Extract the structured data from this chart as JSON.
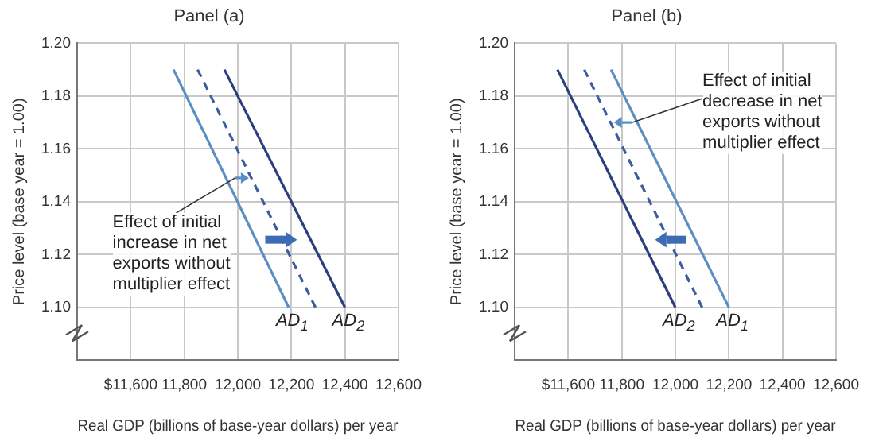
{
  "chart_data": [
    {
      "type": "line",
      "title": "Panel (a)",
      "xlabel": "Real GDP (billions of base-year dollars) per year",
      "ylabel": "Price level (base year = 1.00)",
      "xlim": [
        11400,
        12600
      ],
      "ylim": [
        1.08,
        1.2
      ],
      "xticks": [
        {
          "value": 11600,
          "label": "$11,600"
        },
        {
          "value": 11800,
          "label": "11,800"
        },
        {
          "value": 12000,
          "label": "12,000"
        },
        {
          "value": 12200,
          "label": "12,200"
        },
        {
          "value": 12400,
          "label": "12,400"
        },
        {
          "value": 12600,
          "label": "12,600"
        }
      ],
      "yticks": [
        {
          "value": 1.1,
          "label": "1.10"
        },
        {
          "value": 1.12,
          "label": "1.12"
        },
        {
          "value": 1.14,
          "label": "1.14"
        },
        {
          "value": 1.16,
          "label": "1.16"
        },
        {
          "value": 1.18,
          "label": "1.18"
        },
        {
          "value": 1.2,
          "label": "1.20"
        }
      ],
      "grid": true,
      "marker": "none",
      "series": [
        {
          "name": "AD$_{1}$",
          "color": "#5b8ec4",
          "x": [
            11760,
            12190
          ],
          "values": [
            1.19,
            1.1
          ]
        },
        {
          "color": "#3b5c9e",
          "x": [
            11850,
            12290
          ],
          "values": [
            1.19,
            1.1
          ],
          "line_style": "dashed"
        },
        {
          "name": "AD$_{2}$",
          "color": "#2b3f7f",
          "x": [
            11950,
            12400
          ],
          "values": [
            1.19,
            1.1
          ]
        }
      ],
      "annotations": [
        {
          "text": "Effect of initial\nincrease in net\nexports without\nmultiplier effect",
          "x": 11990,
          "y": 1.149
        }
      ]
    },
    {
      "type": "line",
      "title": "Panel (b)",
      "xlabel": "Real GDP (billions of base-year dollars) per year",
      "ylabel": "Price level (base year = 1.00)",
      "xlim": [
        11400,
        12600
      ],
      "ylim": [
        1.08,
        1.2
      ],
      "xticks": [
        {
          "value": 11600,
          "label": "$11,600"
        },
        {
          "value": 11800,
          "label": "11,800"
        },
        {
          "value": 12000,
          "label": "12,000"
        },
        {
          "value": 12200,
          "label": "12,200"
        },
        {
          "value": 12400,
          "label": "12,400"
        },
        {
          "value": 12600,
          "label": "12,600"
        }
      ],
      "yticks": [
        {
          "value": 1.1,
          "label": "1.10"
        },
        {
          "value": 1.12,
          "label": "1.12"
        },
        {
          "value": 1.14,
          "label": "1.14"
        },
        {
          "value": 1.16,
          "label": "1.16"
        },
        {
          "value": 1.18,
          "label": "1.18"
        },
        {
          "value": 1.2,
          "label": "1.20"
        }
      ],
      "grid": true,
      "marker": "none",
      "series": [
        {
          "name": "AD$_{1}$",
          "color": "#5b8ec4",
          "x": [
            11760,
            12200
          ],
          "values": [
            1.19,
            1.1
          ]
        },
        {
          "color": "#3b5c9e",
          "x": [
            11660,
            12100
          ],
          "values": [
            1.19,
            1.1
          ],
          "line_style": "dashed"
        },
        {
          "name": "AD$_{2}$",
          "color": "#2b3f7f",
          "x": [
            11560,
            12000
          ],
          "values": [
            1.19,
            1.1
          ]
        }
      ],
      "annotations": [
        {
          "text": "Effect of initial\ndecrease in net\nexports without\nmultiplier effect",
          "x": 11840,
          "y": 1.17
        }
      ]
    }
  ]
}
